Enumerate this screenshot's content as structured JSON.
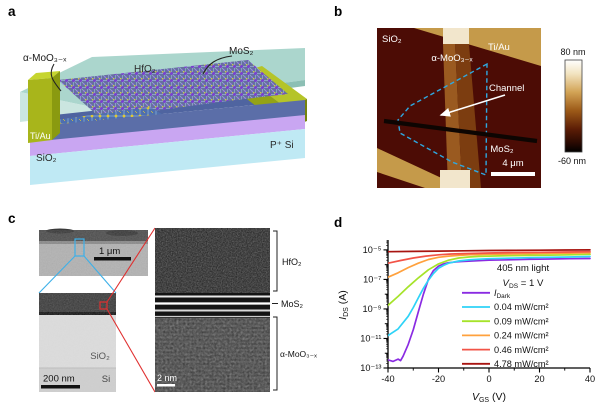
{
  "panel_a": {
    "letter": "a",
    "labels": {
      "amoox": "α-MoO₃₋ₓ",
      "mos2": "MoS₂",
      "hfo2": "HfO₂",
      "tiau": "Ti/Au",
      "sio2": "SiO₂",
      "psi": "P⁺ Si"
    },
    "colors": {
      "hfo2_slab": "#9fd0c6",
      "device_slab": "#5b6ea8",
      "electrode": "#a8b51b",
      "sio2_layer": "#c9a6f2",
      "psi_slab": "#bfe9f4"
    }
  },
  "panel_b": {
    "letter": "b",
    "labels": {
      "sio2": "SiO₂",
      "tiau": "Ti/Au",
      "amoox": "α-MoO₃₋ₓ",
      "channel": "Channel",
      "mos2": "MoS₂",
      "scalebar": "4 μm"
    },
    "colorbar": {
      "max_label": "80 nm",
      "min_label": "-60 nm"
    },
    "colors": {
      "background": "#4c0c05",
      "electrode_band": "#c59a4a",
      "pad": "#f2e6cc",
      "flake_outline": "#2fa8e0"
    }
  },
  "panel_c": {
    "letter": "c",
    "labels": {
      "scalebar1": "1 μm",
      "scalebar2": "200 nm",
      "scalebar3": "2 nm",
      "sio2": "SiO₂",
      "si": "Si",
      "hfo2": "HfO₂",
      "mos2": "MoS₂",
      "amoox": "α-MoO₃₋ₓ"
    }
  },
  "panel_d": {
    "letter": "d"
  },
  "chart_data": {
    "type": "line",
    "title": "",
    "xlabel": {
      "pre": "V",
      "sub": "GS",
      "post": " (V)"
    },
    "ylabel": {
      "pre": "I",
      "sub": "DS",
      "post": " (A)"
    },
    "annotation": {
      "line1": "405 nm light",
      "line2": {
        "pre": "V",
        "sub": "DS",
        "post": " = 1 V"
      }
    },
    "xlim": [
      -40,
      40
    ],
    "ylim_exp": [
      -13,
      -4.33
    ],
    "x_ticks": [
      -40,
      -20,
      0,
      20,
      40
    ],
    "y_major_exps": [
      -13,
      -11,
      -9,
      -7,
      -5
    ],
    "y_tick_labels": [
      "10⁻¹³",
      "10⁻¹¹",
      "10⁻⁹",
      "10⁻⁷",
      "10⁻⁵"
    ],
    "grid": false,
    "legend_position": "inside-right",
    "series": [
      {
        "name": "dark",
        "legend": {
          "pre": "I",
          "sub": "Dark",
          "post": ""
        },
        "color": "#8a2be2",
        "x": [
          -40,
          -38,
          -36,
          -35,
          -34,
          -32,
          -30,
          -28,
          -26,
          -24,
          -22,
          -20,
          -18,
          -16,
          -12,
          -8,
          -4,
          0,
          8,
          16,
          24,
          32,
          40
        ],
        "log10_i": [
          -12.45,
          -12.55,
          -12.4,
          -12.5,
          -12.2,
          -11.4,
          -10.4,
          -9.2,
          -8.0,
          -7.0,
          -6.4,
          -6.1,
          -5.95,
          -5.87,
          -5.8,
          -5.76,
          -5.73,
          -5.7,
          -5.67,
          -5.64,
          -5.62,
          -5.6,
          -5.58
        ]
      },
      {
        "name": "0.04",
        "legend": {
          "pre": "",
          "sub": "",
          "post": "0.04 mW/cm²"
        },
        "color": "#2ed3f7",
        "x": [
          -40,
          -36,
          -32,
          -30,
          -28,
          -26,
          -24,
          -22,
          -20,
          -18,
          -16,
          -12,
          -8,
          -4,
          0,
          8,
          16,
          24,
          32,
          40
        ],
        "log10_i": [
          -10.8,
          -10.35,
          -9.5,
          -8.9,
          -8.25,
          -7.6,
          -7.05,
          -6.6,
          -6.25,
          -6.05,
          -5.9,
          -5.75,
          -5.68,
          -5.63,
          -5.6,
          -5.56,
          -5.53,
          -5.5,
          -5.48,
          -5.45
        ]
      },
      {
        "name": "0.09",
        "legend": {
          "pre": "",
          "sub": "",
          "post": "0.09 mW/cm²"
        },
        "color": "#a6e32a",
        "x": [
          -40,
          -36,
          -32,
          -28,
          -24,
          -20,
          -16,
          -12,
          -8,
          -4,
          0,
          8,
          16,
          24,
          32,
          40
        ],
        "log10_i": [
          -8.75,
          -8.15,
          -7.5,
          -6.9,
          -6.35,
          -5.95,
          -5.7,
          -5.55,
          -5.48,
          -5.44,
          -5.42,
          -5.39,
          -5.37,
          -5.35,
          -5.33,
          -5.3
        ]
      },
      {
        "name": "0.24",
        "legend": {
          "pre": "",
          "sub": "",
          "post": "0.24 mW/cm²"
        },
        "color": "#ffa13d",
        "x": [
          -40,
          -36,
          -32,
          -28,
          -24,
          -20,
          -16,
          -12,
          -8,
          0,
          8,
          16,
          24,
          32,
          40
        ],
        "log10_i": [
          -6.85,
          -6.55,
          -6.2,
          -5.9,
          -5.65,
          -5.5,
          -5.42,
          -5.37,
          -5.33,
          -5.3,
          -5.28,
          -5.26,
          -5.24,
          -5.22,
          -5.2
        ]
      },
      {
        "name": "0.46",
        "legend": {
          "pre": "",
          "sub": "",
          "post": "0.46 mW/cm²"
        },
        "color": "#f25347",
        "x": [
          -40,
          -35,
          -30,
          -25,
          -20,
          -15,
          -10,
          0,
          10,
          20,
          30,
          40
        ],
        "log10_i": [
          -5.9,
          -5.72,
          -5.55,
          -5.42,
          -5.33,
          -5.28,
          -5.25,
          -5.21,
          -5.18,
          -5.16,
          -5.14,
          -5.12
        ]
      },
      {
        "name": "4.78",
        "legend": {
          "pre": "",
          "sub": "",
          "post": "4.78 mW/cm²"
        },
        "color": "#a81410",
        "x": [
          -40,
          -30,
          -20,
          -10,
          0,
          10,
          20,
          30,
          40
        ],
        "log10_i": [
          -5.12,
          -5.1,
          -5.08,
          -5.06,
          -5.04,
          -5.03,
          -5.02,
          -5.01,
          -5.0
        ]
      }
    ]
  }
}
